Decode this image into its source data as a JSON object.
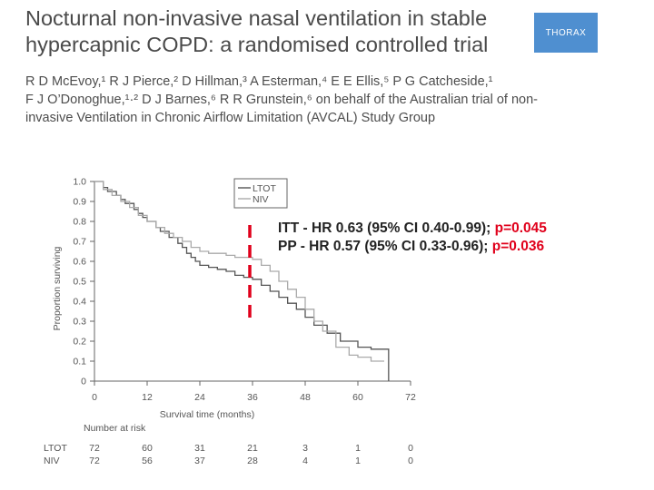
{
  "title": {
    "line1": "Nocturnal non-invasive nasal ventilation in stable",
    "line2": "hypercapnic COPD: a randomised controlled trial"
  },
  "journal_logo": "THORAX",
  "authors": {
    "line1": "R D McEvoy,¹ R J Pierce,² D Hillman,³ A Esterman,⁴ E E Ellis,⁵ P G Catcheside,¹",
    "line2": "F J O’Donoghue,¹·² D J Barnes,⁶ R R Grunstein,⁶ on behalf of the Australian trial of non-",
    "line3": "invasive Ventilation in Chronic Airflow Limitation (AVCAL) Study Group"
  },
  "stats": {
    "itt_text": "ITT - HR 0.63 (95% CI 0.40-0.99); ",
    "itt_p": "p=0.045",
    "pp_text": "PP - HR 0.57 (95% CI 0.33-0.96); ",
    "pp_p": "p=0.036"
  },
  "colors": {
    "accent_red": "#e0001b",
    "ltot": "#555555",
    "niv": "#aaaaaa",
    "logo": "#4f8fd0"
  },
  "chart_data": {
    "type": "line",
    "subtype": "kaplan-meier",
    "title": "",
    "xlabel": "Survival time (months)",
    "ylabel": "Proportion surviving",
    "xlim": [
      0,
      72
    ],
    "ylim": [
      0,
      1.0
    ],
    "xticks": [
      "0",
      "12",
      "24",
      "36",
      "48",
      "60",
      "72"
    ],
    "yticks": [
      "0",
      "0.1",
      "0.2",
      "0.3",
      "0.4",
      "0.5",
      "0.6",
      "0.7",
      "0.8",
      "0.9",
      "1.0"
    ],
    "grid": false,
    "legend_position": "top-right",
    "highlight_month": 36,
    "series": [
      {
        "name": "LTOT",
        "x": [
          0,
          2,
          3,
          5,
          6,
          7,
          9,
          10,
          11,
          12,
          14,
          15,
          17,
          19,
          20,
          21,
          22,
          23,
          24,
          26,
          28,
          30,
          32,
          34,
          36,
          38,
          40,
          42,
          44,
          46,
          48,
          50,
          53,
          56,
          60,
          63,
          67
        ],
        "y": [
          1.0,
          0.97,
          0.95,
          0.93,
          0.91,
          0.89,
          0.86,
          0.84,
          0.82,
          0.8,
          0.77,
          0.75,
          0.72,
          0.69,
          0.67,
          0.64,
          0.62,
          0.6,
          0.58,
          0.57,
          0.56,
          0.55,
          0.53,
          0.52,
          0.51,
          0.48,
          0.45,
          0.42,
          0.39,
          0.36,
          0.32,
          0.28,
          0.24,
          0.2,
          0.17,
          0.16,
          0.0
        ]
      },
      {
        "name": "NIV",
        "x": [
          0,
          2,
          4,
          6,
          8,
          10,
          12,
          14,
          16,
          18,
          20,
          22,
          24,
          26,
          28,
          30,
          32,
          34,
          36,
          38,
          40,
          42,
          44,
          46,
          48,
          50,
          52,
          55,
          58,
          60,
          63,
          66
        ],
        "y": [
          1.0,
          0.96,
          0.93,
          0.9,
          0.87,
          0.83,
          0.8,
          0.77,
          0.74,
          0.72,
          0.7,
          0.67,
          0.65,
          0.64,
          0.64,
          0.63,
          0.62,
          0.62,
          0.61,
          0.58,
          0.55,
          0.5,
          0.46,
          0.42,
          0.36,
          0.3,
          0.25,
          0.17,
          0.13,
          0.12,
          0.1,
          0.1
        ]
      }
    ],
    "risk_table": {
      "label": "Number at risk",
      "rows": [
        {
          "name": "LTOT",
          "values": [
            "72",
            "60",
            "31",
            "21",
            "3",
            "1",
            "0"
          ]
        },
        {
          "name": "NIV",
          "values": [
            "72",
            "56",
            "37",
            "28",
            "4",
            "1",
            "0"
          ]
        }
      ]
    }
  }
}
